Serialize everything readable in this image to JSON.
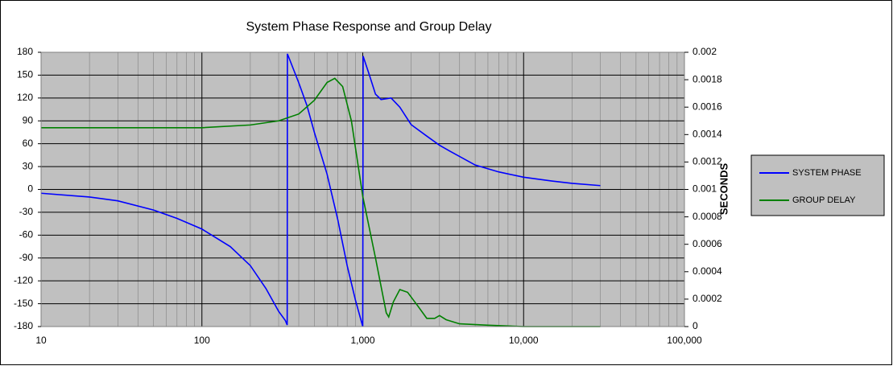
{
  "chart_data": {
    "type": "line",
    "title": "System Phase Response and Group Delay",
    "y2_label": "SECONDS",
    "log_x": true,
    "grid": true,
    "legend": "right",
    "xlim": [
      10,
      100000
    ],
    "xticks": [
      10,
      100,
      {
        "value": 1000,
        "label": "1,000"
      },
      {
        "value": 10000,
        "label": "10,000"
      },
      {
        "value": 100000,
        "label": "100,000"
      }
    ],
    "ylim": [
      -180,
      180
    ],
    "yticks": [
      -180,
      -150,
      -120,
      -90,
      -60,
      -30,
      0,
      30,
      60,
      90,
      120,
      150,
      180
    ],
    "y2lim": [
      0,
      0.002
    ],
    "y2ticks": [
      0,
      0.0002,
      0.0004,
      0.0006,
      0.0008,
      0.001,
      0.0012,
      0.0014,
      0.0016,
      0.0018,
      0.002
    ],
    "series": [
      {
        "name": "SYSTEM PHASE",
        "color": "#0000ff",
        "x": [
          10,
          20,
          30,
          50,
          70,
          100,
          150,
          200,
          250,
          300,
          330,
          339,
          340,
          400,
          450,
          500,
          600,
          700,
          800,
          900,
          1000,
          1005,
          1100,
          1200,
          1300,
          1500,
          1700,
          2000,
          2500,
          3000,
          3500,
          5000,
          7000,
          10000,
          15000,
          20000,
          30000
        ],
        "values": [
          -5,
          -10,
          -15,
          -27,
          -38,
          -52,
          -75,
          -100,
          -130,
          -160,
          -172,
          -178,
          178,
          140,
          110,
          75,
          20,
          -40,
          -100,
          -145,
          -180,
          175,
          150,
          125,
          118,
          120,
          108,
          85,
          70,
          58,
          50,
          32,
          23,
          16,
          11,
          8,
          5
        ]
      },
      {
        "name": "GROUP DELAY",
        "color": "#008000",
        "axis": "y2",
        "x": [
          10,
          100,
          200,
          300,
          400,
          500,
          600,
          670,
          750,
          850,
          1000,
          1200,
          1400,
          1450,
          1550,
          1700,
          1900,
          2200,
          2500,
          2800,
          3000,
          3300,
          4000,
          6000,
          10000,
          30000
        ],
        "values": [
          0.00145,
          0.00145,
          0.00147,
          0.0015,
          0.00155,
          0.00165,
          0.00178,
          0.00181,
          0.00175,
          0.0015,
          0.00095,
          0.0005,
          0.0001,
          7e-05,
          0.00018,
          0.00027,
          0.00025,
          0.00015,
          6e-05,
          6e-05,
          8e-05,
          5e-05,
          2e-05,
          1e-05,
          0,
          0
        ]
      }
    ]
  }
}
